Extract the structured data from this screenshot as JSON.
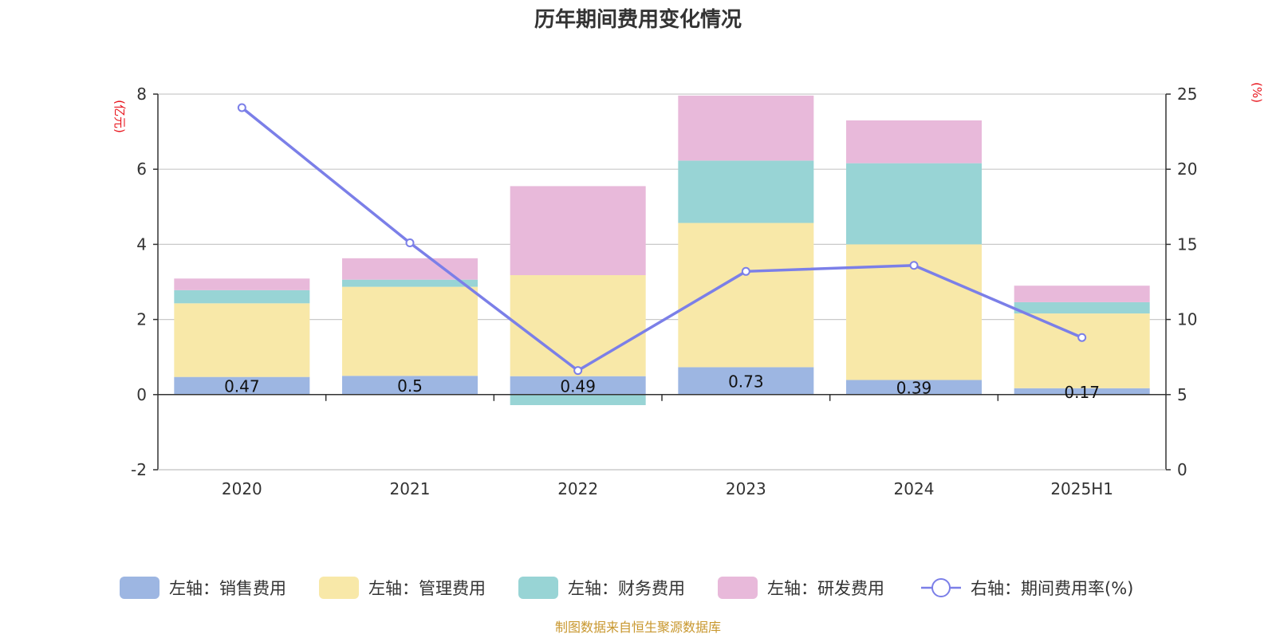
{
  "colors": {
    "sales": "#9db6e2",
    "admin": "#f8e8a8",
    "finance": "#98d4d5",
    "rd": "#e8b9da",
    "rate_line": "#7b7fe8",
    "unit_label": "#e8141c",
    "source": "#c8972e",
    "grid": "#c9c9c9",
    "axis": "#333333"
  },
  "chart_data": {
    "type": "bar",
    "stacked": true,
    "title": "历年期间费用变化情况",
    "categories": [
      "2020",
      "2021",
      "2022",
      "2023",
      "2024",
      "2025H1"
    ],
    "left_axis": {
      "unit": "(亿元)",
      "ylim": [
        -2,
        8
      ],
      "ticks": [
        -2,
        0,
        2,
        4,
        6,
        8
      ]
    },
    "right_axis": {
      "unit": "(%)",
      "ylim": [
        0,
        25
      ],
      "ticks": [
        0,
        5,
        10,
        15,
        20,
        25
      ]
    },
    "series": [
      {
        "key": "sales",
        "name": "左轴：销售费用",
        "axis": "left",
        "values": [
          0.47,
          0.5,
          0.49,
          0.73,
          0.39,
          0.17
        ],
        "labels": [
          "0.47",
          "0.5",
          "0.49",
          "0.73",
          "0.39",
          "0.17"
        ]
      },
      {
        "key": "admin",
        "name": "左轴：管理费用",
        "axis": "left",
        "values": [
          1.96,
          2.37,
          2.69,
          3.84,
          3.61,
          1.99
        ]
      },
      {
        "key": "finance",
        "name": "左轴：财务费用",
        "axis": "left",
        "values": [
          0.35,
          0.19,
          -0.28,
          1.66,
          2.16,
          0.3
        ]
      },
      {
        "key": "rd",
        "name": "左轴：研发费用",
        "axis": "left",
        "values": [
          0.31,
          0.57,
          2.37,
          1.73,
          1.14,
          0.44
        ]
      },
      {
        "key": "rate",
        "name": "右轴：期间费用率(%)",
        "axis": "right",
        "type": "line",
        "values": [
          24.1,
          15.1,
          6.6,
          13.2,
          13.6,
          8.8
        ]
      }
    ],
    "grid": true,
    "legend_position": "bottom",
    "source": "制图数据来自恒生聚源数据库"
  }
}
